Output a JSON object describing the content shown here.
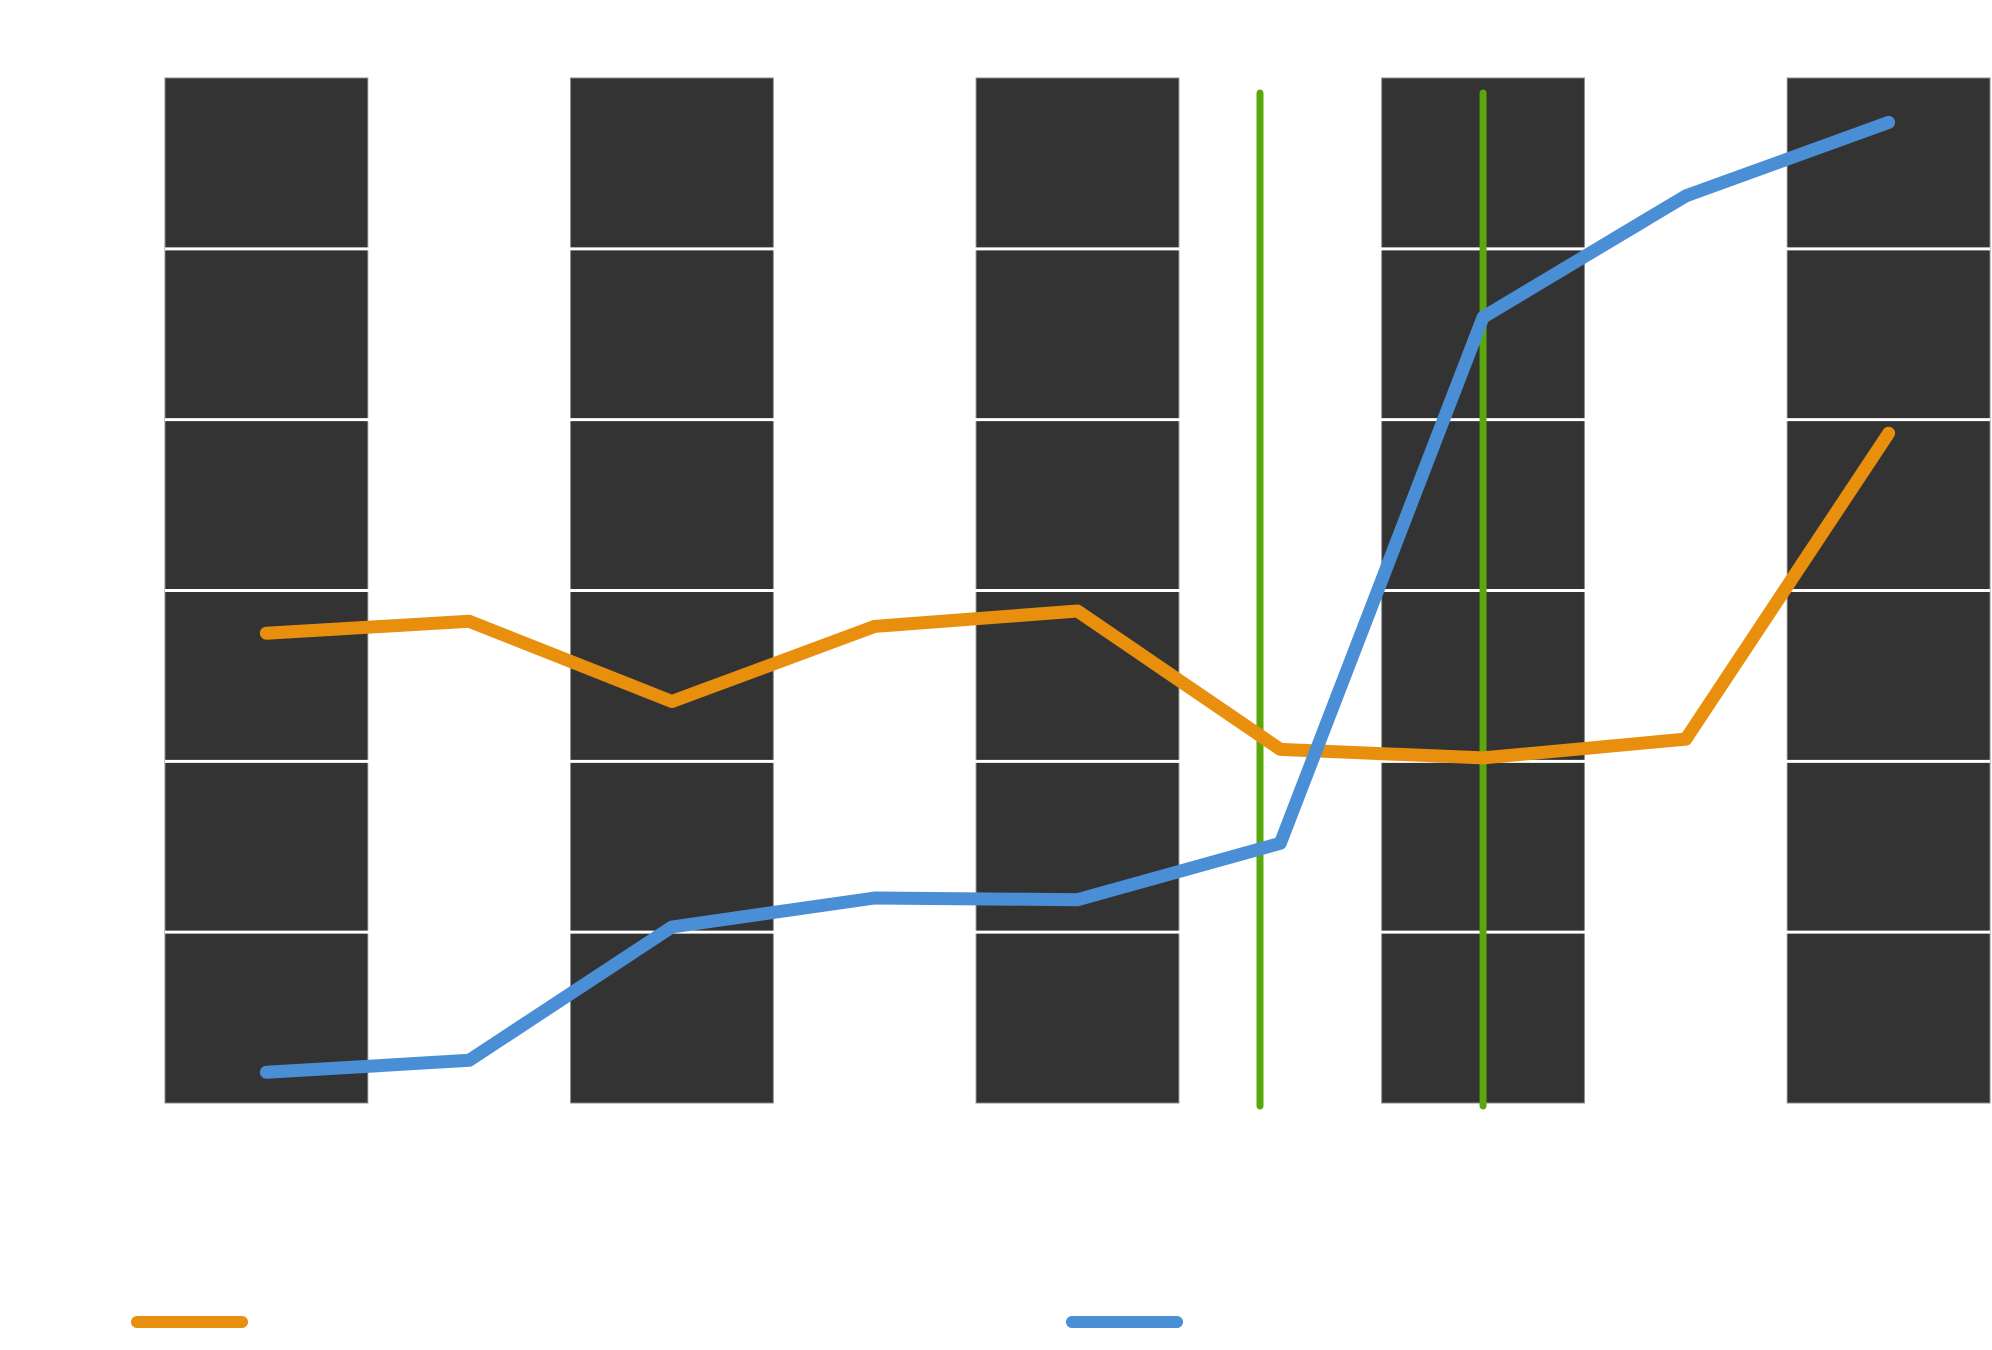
{
  "chart_data": {
    "type": "line",
    "title": "",
    "xlabel": "",
    "ylabel": "",
    "x": [
      0,
      1,
      2,
      3,
      4,
      5,
      6,
      7,
      8
    ],
    "xlim": [
      -0.5,
      8.5
    ],
    "ylim": [
      0,
      6
    ],
    "grid": true,
    "background_style": "dark alternating column bands with white horizontal gridlines",
    "series": [
      {
        "name": "",
        "color": "#E8900E",
        "values": [
          2.75,
          2.82,
          2.35,
          2.79,
          2.88,
          2.07,
          2.02,
          2.13,
          3.92
        ]
      },
      {
        "name": "",
        "color": "#4A8FD6",
        "values": [
          0.18,
          0.25,
          1.03,
          1.2,
          1.19,
          1.52,
          4.6,
          5.31,
          5.74
        ]
      }
    ],
    "vertical_lines": [
      {
        "x": 4.9,
        "color": "#5AA80E"
      },
      {
        "x": 6.0,
        "color": "#5AA80E"
      }
    ],
    "legend": {
      "placement": "bottom",
      "entries": [
        {
          "label": "",
          "color": "#E8900E"
        },
        {
          "label": "",
          "color": "#4A8FD6"
        }
      ]
    },
    "colors": {
      "band": "#333333",
      "band_edge": "#888888",
      "gridline": "#ffffff",
      "background": "#ffffff"
    }
  }
}
